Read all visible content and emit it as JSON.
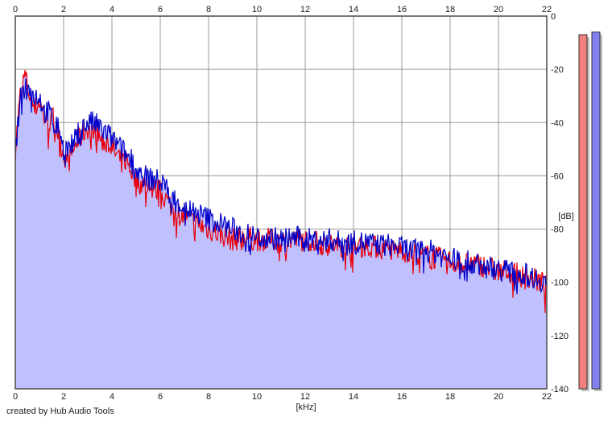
{
  "colors": {
    "left_channel": "#e8000b",
    "right_channel": "#0000c8",
    "fill": "#c0c0ff",
    "grid": "#999999",
    "plot_border": "#4a4a4a",
    "meter_left_fill": "#f08080",
    "meter_right_fill": "#8080ee",
    "meter_shadow": "#c0c0c0"
  },
  "credit": "created by Hub Audio Tools",
  "chart_data": {
    "type": "line",
    "title": "",
    "xlabel": "[kHz]",
    "ylabel": "[dB]",
    "xlim": [
      0,
      22
    ],
    "ylim": [
      -140,
      0
    ],
    "x_ticks": [
      "0",
      "2",
      "4",
      "6",
      "8",
      "10",
      "12",
      "14",
      "16",
      "18",
      "20",
      "22"
    ],
    "y_ticks": [
      "0",
      "-20",
      "-40",
      "-60",
      "-80",
      "-100",
      "-120",
      "-140"
    ],
    "grid": true,
    "x_khz": [
      0,
      0.2,
      0.4,
      0.6,
      0.8,
      1,
      1.2,
      1.4,
      1.6,
      1.8,
      2,
      2.2,
      2.4,
      2.6,
      2.8,
      3,
      3.2,
      3.4,
      3.6,
      3.8,
      4,
      4.2,
      4.4,
      4.6,
      4.8,
      5,
      5.5,
      6,
      6.5,
      7,
      7.5,
      8,
      8.5,
      9,
      9.5,
      10,
      10.5,
      11,
      11.5,
      12,
      12.5,
      13,
      13.5,
      14,
      14.5,
      15,
      15.5,
      16,
      16.5,
      17,
      17.5,
      18,
      18.5,
      19,
      19.5,
      20,
      20.5,
      21,
      21.5,
      22
    ],
    "series": [
      {
        "channel": "left",
        "values_db": [
          -50,
          -30,
          -22,
          -30,
          -35,
          -32,
          -38,
          -40,
          -38,
          -45,
          -52,
          -55,
          -50,
          -47,
          -44,
          -42,
          -45,
          -43,
          -48,
          -46,
          -50,
          -52,
          -55,
          -54,
          -58,
          -62,
          -64,
          -66,
          -72,
          -76,
          -78,
          -80,
          -82,
          -84,
          -83,
          -84,
          -84,
          -85,
          -84,
          -84,
          -85,
          -86,
          -86,
          -87,
          -86,
          -87,
          -88,
          -88,
          -89,
          -90,
          -91,
          -92,
          -93,
          -93,
          -94,
          -96,
          -96,
          -98,
          -99,
          -101
        ]
      },
      {
        "channel": "right",
        "values_db": [
          -52,
          -32,
          -26,
          -28,
          -30,
          -30,
          -36,
          -36,
          -40,
          -42,
          -48,
          -50,
          -48,
          -44,
          -42,
          -40,
          -40,
          -41,
          -43,
          -44,
          -46,
          -48,
          -50,
          -52,
          -54,
          -58,
          -61,
          -62,
          -68,
          -72,
          -74,
          -76,
          -78,
          -80,
          -82,
          -83,
          -83,
          -84,
          -83,
          -84,
          -84,
          -84,
          -85,
          -85,
          -85,
          -86,
          -86,
          -87,
          -88,
          -88,
          -89,
          -91,
          -92,
          -93,
          -94,
          -95,
          -96,
          -97,
          -98,
          -100
        ]
      }
    ],
    "meters": [
      {
        "channel": "left",
        "level_db": -7
      },
      {
        "channel": "right",
        "level_db": -6
      }
    ]
  }
}
